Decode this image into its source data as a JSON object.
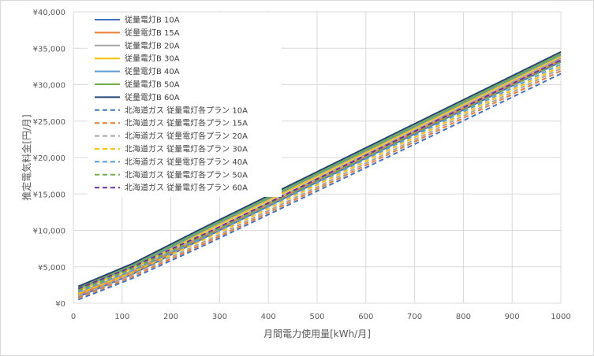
{
  "chart_data": {
    "type": "line",
    "title": "",
    "xlabel": "月間電力使用量[kWh/月]",
    "ylabel": "推定電気料金[円/月]",
    "xlim": [
      0,
      1000
    ],
    "ylim": [
      0,
      40000
    ],
    "x_ticks": [
      "0",
      "100",
      "200",
      "300",
      "400",
      "500",
      "600",
      "700",
      "800",
      "900",
      "1000"
    ],
    "y_ticks": [
      "¥0",
      "¥5,000",
      "¥10,000",
      "¥15,000",
      "¥20,000",
      "¥25,000",
      "¥30,000",
      "¥35,000",
      "¥40,000"
    ],
    "grid": true,
    "legend_position": "top-left",
    "x": [
      10,
      120,
      280,
      1000
    ],
    "series": [
      {
        "name": "従量電灯B 10A",
        "color": "#4472c4",
        "dash": false,
        "values": [
          900,
          3950,
          9350,
          33150
        ]
      },
      {
        "name": "従量電灯B 15A",
        "color": "#ed7d31",
        "dash": false,
        "values": [
          1150,
          4200,
          9600,
          33400
        ]
      },
      {
        "name": "従量電灯B 20A",
        "color": "#a5a5a5",
        "dash": false,
        "values": [
          1400,
          4450,
          9850,
          33650
        ]
      },
      {
        "name": "従量電灯B 30A",
        "color": "#ffc000",
        "dash": false,
        "values": [
          1700,
          4750,
          10150,
          33900
        ]
      },
      {
        "name": "従量電灯B 40A",
        "color": "#5b9bd5",
        "dash": false,
        "values": [
          1950,
          5000,
          10400,
          34100
        ]
      },
      {
        "name": "従量電灯B 50A",
        "color": "#70ad47",
        "dash": false,
        "values": [
          2100,
          5150,
          10550,
          34250
        ]
      },
      {
        "name": "従量電灯B 60A",
        "color": "#264478",
        "dash": false,
        "values": [
          2300,
          5400,
          10800,
          34500
        ]
      },
      {
        "name": "北海道ガス 従量電灯各プラン 10A",
        "color": "#4472c4",
        "dash": true,
        "values": [
          500,
          3400,
          8300,
          31500
        ]
      },
      {
        "name": "北海道ガス 従量電灯各プラン 15A",
        "color": "#ed7d31",
        "dash": true,
        "values": [
          750,
          3650,
          8550,
          31900
        ]
      },
      {
        "name": "北海道ガス 従量電灯各プラン 20A",
        "color": "#a5a5a5",
        "dash": true,
        "values": [
          1000,
          3900,
          8800,
          32200
        ]
      },
      {
        "name": "北海道ガス 従量電灯各プラン 30A",
        "color": "#ffc000",
        "dash": true,
        "values": [
          1300,
          4200,
          9100,
          32500
        ]
      },
      {
        "name": "北海道ガス 従量電灯各プラン 40A",
        "color": "#5b9bd5",
        "dash": true,
        "values": [
          1550,
          4450,
          9350,
          32800
        ]
      },
      {
        "name": "北海道ガス 従量電灯各プラン 50A",
        "color": "#70ad47",
        "dash": true,
        "values": [
          1750,
          4700,
          9600,
          33100
        ]
      },
      {
        "name": "北海道ガス 従量電灯各プラン 60A",
        "color": "#7030a0",
        "dash": true,
        "values": [
          2000,
          4950,
          9850,
          33400
        ]
      }
    ]
  }
}
